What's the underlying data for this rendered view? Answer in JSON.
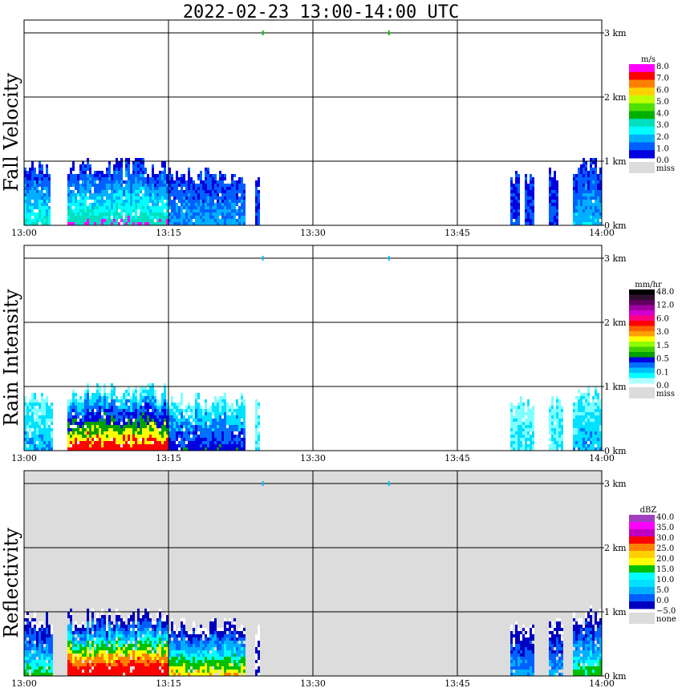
{
  "chart_data": {
    "type": "heatmap",
    "title": "2022-02-23  13:00-14:00 UTC",
    "x_ticks": [
      "13:00",
      "13:15",
      "13:30",
      "13:45",
      "14:00"
    ],
    "x_range_minutes": [
      0,
      60
    ],
    "y_ticks": [
      "0 km",
      "1 km",
      "2 km",
      "3 km"
    ],
    "y_range_km": [
      0,
      3.2
    ],
    "panels": [
      {
        "name": "fall-velocity",
        "label": "Fall Velocity",
        "unit": "m/s",
        "background": "#ffffff",
        "colorbar": {
          "colors": [
            "#ff00ff",
            "#ff0000",
            "#ff8000",
            "#ffd000",
            "#c0ff00",
            "#50e000",
            "#00b000",
            "#00e0c0",
            "#00ffff",
            "#00b0ff",
            "#0060ff",
            "#0000e0"
          ],
          "labels": [
            "8.0",
            "7.0",
            "6.0",
            "5.0",
            "4.0",
            "3.0",
            "2.0",
            "1.0",
            "0.0"
          ],
          "miss_label": "miss"
        },
        "palette": [
          "#0000e0",
          "#0060ff",
          "#00b0ff",
          "#00ffff",
          "#00e0c0",
          "#ff00ff"
        ],
        "echoes": [
          {
            "t0": 0.0,
            "t1": 2.7,
            "h_top": 1.0,
            "core": 0.6,
            "intensity": 0.4
          },
          {
            "t0": 4.5,
            "t1": 15.0,
            "h_top": 1.05,
            "core": 0.7,
            "intensity": 0.5
          },
          {
            "t0": 15.0,
            "t1": 22.8,
            "h_top": 0.9,
            "core": 0.3,
            "intensity": 0.2
          },
          {
            "t0": 24.0,
            "t1": 24.4,
            "h_top": 0.8,
            "core": 0.1,
            "intensity": 0.0
          },
          {
            "t0": 50.5,
            "t1": 51.5,
            "h_top": 0.85,
            "core": 0.1,
            "intensity": 0.1
          },
          {
            "t0": 52.0,
            "t1": 53.0,
            "h_top": 0.8,
            "core": 0.1,
            "intensity": 0.1
          },
          {
            "t0": 54.5,
            "t1": 55.5,
            "h_top": 0.9,
            "core": 0.1,
            "intensity": 0.1
          },
          {
            "t0": 57.0,
            "t1": 60.0,
            "h_top": 1.05,
            "core": 0.4,
            "intensity": 0.2
          }
        ],
        "marks": [
          {
            "t": 24.8,
            "color": "#00c000"
          },
          {
            "t": 37.9,
            "color": "#00c000"
          }
        ]
      },
      {
        "name": "rain-intensity",
        "label": "Rain Intensity",
        "unit": "mm/hr",
        "background": "#ffffff",
        "colorbar": {
          "colors": [
            "#000000",
            "#301030",
            "#600060",
            "#a000a0",
            "#d000d0",
            "#ff0080",
            "#ff0000",
            "#ff6000",
            "#ffa000",
            "#ffff00",
            "#90ff00",
            "#40d000",
            "#00a000",
            "#0000e0",
            "#0070ff",
            "#00c0ff",
            "#00ffff",
            "#b0ffff"
          ],
          "labels": [
            "48.0",
            "12.0",
            "6.0",
            "3.0",
            "1.5",
            "0.5",
            "0.1",
            "0.0"
          ],
          "miss_label": "miss"
        },
        "palette": [
          "#80ffff",
          "#00e0ff",
          "#0070ff",
          "#0000e0",
          "#00a000",
          "#ffff00",
          "#ff0000"
        ],
        "echoes": [
          {
            "t0": 0.0,
            "t1": 3.0,
            "h_top": 0.95,
            "core": 0.2,
            "intensity": 0.1
          },
          {
            "t0": 4.5,
            "t1": 15.0,
            "h_top": 1.05,
            "core": 0.75,
            "intensity": 0.85
          },
          {
            "t0": 15.0,
            "t1": 22.8,
            "h_top": 0.9,
            "core": 0.4,
            "intensity": 0.35
          },
          {
            "t0": 24.0,
            "t1": 24.4,
            "h_top": 0.8,
            "core": 0.1,
            "intensity": 0.0
          },
          {
            "t0": 50.5,
            "t1": 53.0,
            "h_top": 0.85,
            "core": 0.1,
            "intensity": 0.0
          },
          {
            "t0": 54.5,
            "t1": 56.0,
            "h_top": 0.9,
            "core": 0.1,
            "intensity": 0.0
          },
          {
            "t0": 57.0,
            "t1": 60.0,
            "h_top": 1.05,
            "core": 0.2,
            "intensity": 0.05
          }
        ],
        "marks": [
          {
            "t": 24.8,
            "color": "#00c0ff"
          },
          {
            "t": 37.9,
            "color": "#00c0ff"
          }
        ]
      },
      {
        "name": "reflectivity",
        "label": "Reflectivity",
        "unit": "dBZ",
        "background": "#dcdcdc",
        "colorbar": {
          "colors": [
            "#a040c0",
            "#ff00ff",
            "#c000c0",
            "#ff0000",
            "#ff8000",
            "#ffd000",
            "#ffff00",
            "#00c000",
            "#00ffff",
            "#00e0ff",
            "#00b0ff",
            "#0060ff",
            "#0000c0"
          ],
          "labels": [
            "40.0",
            "35.0",
            "30.0",
            "25.0",
            "20.0",
            "15.0",
            "10.0",
            "5.0",
            "0.0",
            "−5.0"
          ],
          "miss_label": "none"
        },
        "palette": [
          "#ffffff",
          "#0000c0",
          "#0060ff",
          "#00b0ff",
          "#00ffff",
          "#00c000",
          "#ffff00",
          "#ff8000",
          "#ff0000"
        ],
        "echoes": [
          {
            "t0": 0.0,
            "t1": 3.0,
            "h_top": 1.0,
            "core": 0.5,
            "intensity": 0.3
          },
          {
            "t0": 4.5,
            "t1": 15.0,
            "h_top": 1.05,
            "core": 0.8,
            "intensity": 0.9
          },
          {
            "t0": 15.0,
            "t1": 22.8,
            "h_top": 0.9,
            "core": 0.6,
            "intensity": 0.55
          },
          {
            "t0": 24.0,
            "t1": 24.4,
            "h_top": 0.8,
            "core": 0.1,
            "intensity": 0.0
          },
          {
            "t0": 50.5,
            "t1": 53.0,
            "h_top": 0.85,
            "core": 0.3,
            "intensity": 0.2
          },
          {
            "t0": 54.5,
            "t1": 56.0,
            "h_top": 0.9,
            "core": 0.3,
            "intensity": 0.2
          },
          {
            "t0": 57.0,
            "t1": 60.0,
            "h_top": 1.05,
            "core": 0.5,
            "intensity": 0.35
          }
        ],
        "marks": [
          {
            "t": 24.8,
            "color": "#00c0ff"
          },
          {
            "t": 37.9,
            "color": "#00c0ff"
          }
        ]
      }
    ]
  }
}
